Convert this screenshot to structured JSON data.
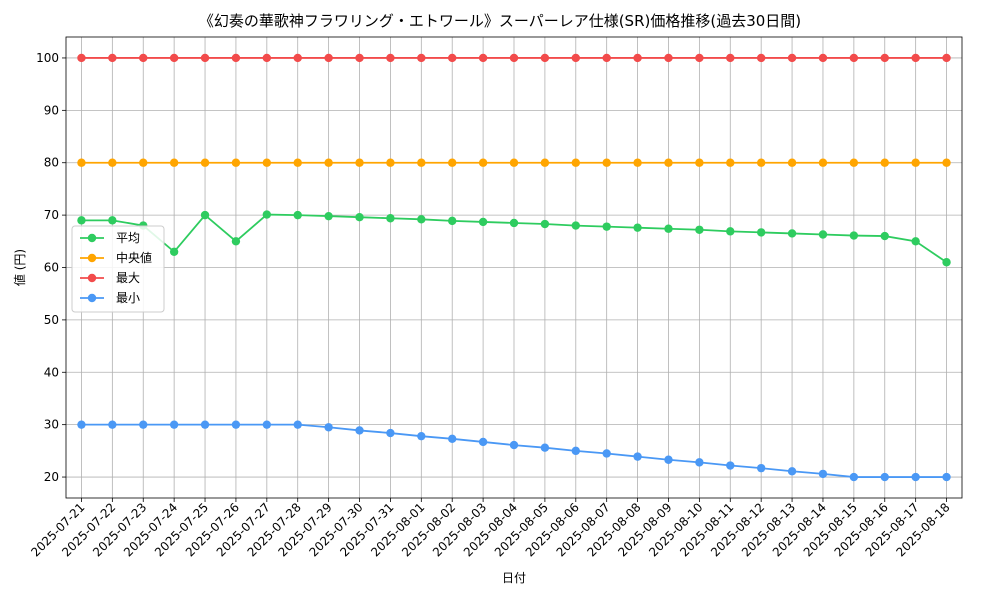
{
  "chart_data": {
    "type": "line",
    "title": "《幻奏の華歌神フラワリング・エトワール》スーパーレア仕様(SR)価格推移(過去30日間)",
    "xlabel": "日付",
    "ylabel": "値 (円)",
    "ylim": [
      16,
      104
    ],
    "yticks": [
      20,
      30,
      40,
      50,
      60,
      70,
      80,
      90,
      100
    ],
    "ytick_labels": [
      "20",
      "30",
      "40",
      "50",
      "60",
      "70",
      "80",
      "90",
      "100"
    ],
    "grid": true,
    "legend_position": "center-left",
    "categories": [
      "2025-07-21",
      "2025-07-22",
      "2025-07-23",
      "2025-07-24",
      "2025-07-25",
      "2025-07-26",
      "2025-07-27",
      "2025-07-28",
      "2025-07-29",
      "2025-07-30",
      "2025-07-31",
      "2025-08-01",
      "2025-08-02",
      "2025-08-03",
      "2025-08-04",
      "2025-08-05",
      "2025-08-06",
      "2025-08-07",
      "2025-08-08",
      "2025-08-09",
      "2025-08-10",
      "2025-08-11",
      "2025-08-12",
      "2025-08-13",
      "2025-08-14",
      "2025-08-15",
      "2025-08-16",
      "2025-08-17",
      "2025-08-18"
    ],
    "series": [
      {
        "name": "平均",
        "color": "#2ecc5f",
        "values": [
          69,
          69,
          68,
          63,
          70,
          65,
          70.1,
          70,
          69.8,
          69.6,
          69.4,
          69.2,
          68.9,
          68.7,
          68.5,
          68.3,
          68.0,
          67.8,
          67.6,
          67.4,
          67.2,
          66.9,
          66.7,
          66.5,
          66.3,
          66.1,
          66.0,
          65,
          61
        ]
      },
      {
        "name": "中央値",
        "color": "#ffa500",
        "values": [
          80,
          80,
          80,
          80,
          80,
          80,
          80,
          80,
          80,
          80,
          80,
          80,
          80,
          80,
          80,
          80,
          80,
          80,
          80,
          80,
          80,
          80,
          80,
          80,
          80,
          80,
          80,
          80,
          80
        ]
      },
      {
        "name": "最大",
        "color": "#f24b4b",
        "values": [
          100,
          100,
          100,
          100,
          100,
          100,
          100,
          100,
          100,
          100,
          100,
          100,
          100,
          100,
          100,
          100,
          100,
          100,
          100,
          100,
          100,
          100,
          100,
          100,
          100,
          100,
          100,
          100,
          100
        ]
      },
      {
        "name": "最小",
        "color": "#4a98f5",
        "values": [
          30,
          30,
          30,
          30,
          30,
          30,
          30,
          30,
          29.5,
          28.9,
          28.4,
          27.8,
          27.3,
          26.7,
          26.1,
          25.6,
          25.0,
          24.5,
          23.9,
          23.3,
          22.8,
          22.2,
          21.7,
          21.1,
          20.6,
          20,
          20,
          20,
          20
        ]
      }
    ]
  }
}
